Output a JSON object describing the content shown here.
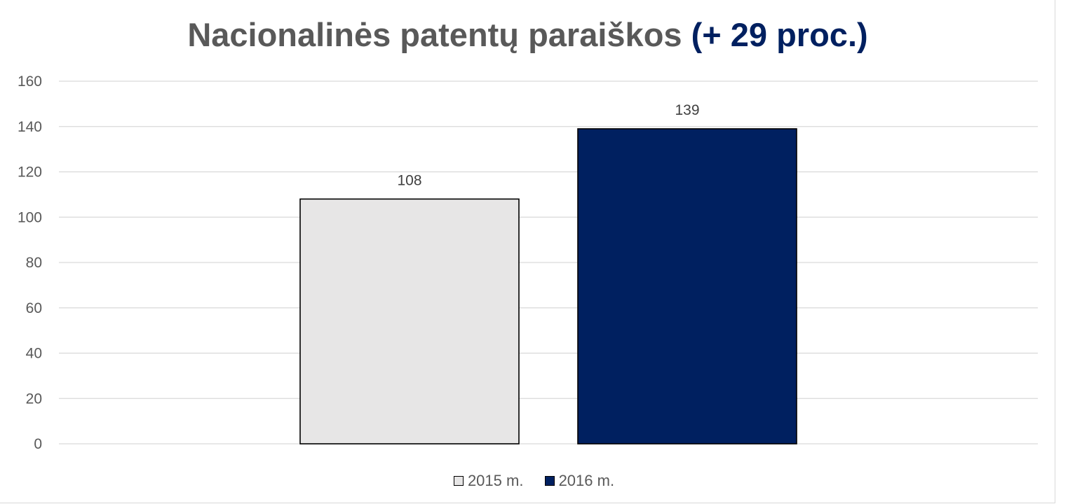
{
  "chart_data": {
    "type": "bar",
    "title": "Nacionalinės patentų paraiškos",
    "title_accent": "(+ 29 proc.)",
    "xlabel": "",
    "ylabel": "",
    "ylim": [
      0,
      160
    ],
    "yticks": [
      0,
      20,
      40,
      60,
      80,
      100,
      120,
      140,
      160
    ],
    "grid": true,
    "legend_position": "bottom",
    "series": [
      {
        "name": "2015 m.",
        "values": [
          108
        ],
        "color": "#e7e6e6",
        "data_label": "108"
      },
      {
        "name": "2016 m.",
        "values": [
          139
        ],
        "color": "#002060",
        "data_label": "139"
      }
    ]
  },
  "colors": {
    "title": "#595959",
    "title_accent": "#002060",
    "gridline": "#d9d9d9",
    "bar_outline": "#000000"
  }
}
